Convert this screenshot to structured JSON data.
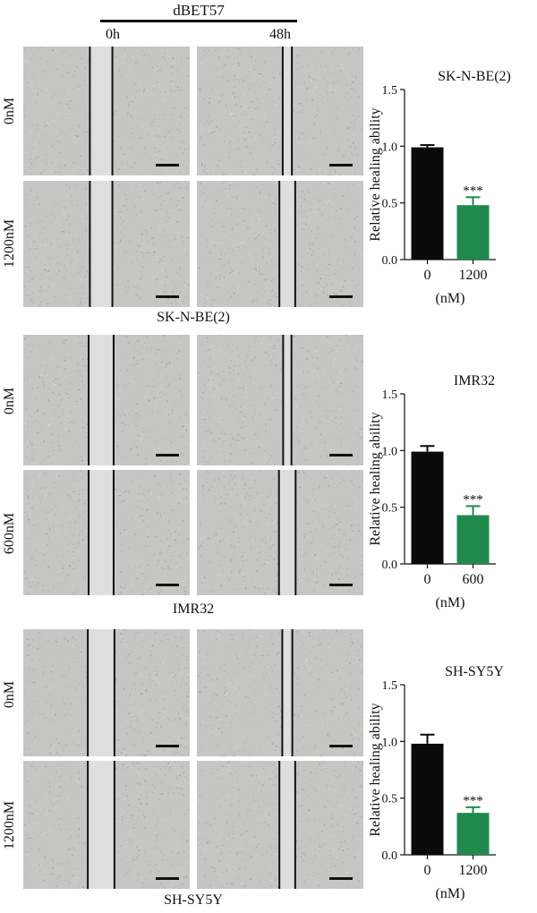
{
  "header": {
    "treatment": "dBET57",
    "time_0": "0h",
    "time_48": "48h"
  },
  "rows": [
    {
      "dose_top": "0nM",
      "dose_bottom": "1200nM",
      "cell_line_label": "SK-N-BE(2)",
      "wound_gap_fraction": {
        "top_0h": 0.135,
        "top_48h": 0.055,
        "bottom_0h": 0.135,
        "bottom_48h": 0.095
      }
    },
    {
      "dose_top": "0nM",
      "dose_bottom": "600nM",
      "cell_line_label": "IMR32",
      "wound_gap_fraction": {
        "top_0h": 0.15,
        "top_48h": 0.05,
        "bottom_0h": 0.15,
        "bottom_48h": 0.1
      }
    },
    {
      "dose_top": "0nM",
      "dose_bottom": "1200nM",
      "cell_line_label": "SH-SY5Y",
      "wound_gap_fraction": {
        "top_0h": 0.16,
        "top_48h": 0.06,
        "bottom_0h": 0.16,
        "bottom_48h": 0.095
      }
    }
  ],
  "chart_data": [
    {
      "type": "bar",
      "title": "SK-N-BE(2)",
      "ylabel": "Relative healing ability",
      "xlabel": "(nM)",
      "categories": [
        "0",
        "1200"
      ],
      "values": [
        0.99,
        0.48
      ],
      "error": [
        0.02,
        0.07
      ],
      "significance": [
        "",
        "***"
      ],
      "colors": [
        "#0a0a0a",
        "#1f8a4c"
      ],
      "ylim": [
        0,
        1.5
      ],
      "yticks": [
        0.0,
        0.5,
        1.0,
        1.5
      ],
      "ytick_labels": [
        "0.0",
        "0.5",
        "1.0",
        "1.5"
      ],
      "grid": false
    },
    {
      "type": "bar",
      "title": "IMR32",
      "ylabel": "Relative healing ability",
      "xlabel": "(nM)",
      "categories": [
        "0",
        "600"
      ],
      "values": [
        0.99,
        0.43
      ],
      "error": [
        0.05,
        0.08
      ],
      "significance": [
        "",
        "***"
      ],
      "colors": [
        "#0a0a0a",
        "#1f8a4c"
      ],
      "ylim": [
        0,
        1.5
      ],
      "yticks": [
        0.0,
        0.5,
        1.0,
        1.5
      ],
      "ytick_labels": [
        "0.0",
        "0.5",
        "1.0",
        "1.5"
      ],
      "grid": false
    },
    {
      "type": "bar",
      "title": "SH-SY5Y",
      "ylabel": "Relative healing ability",
      "xlabel": "(nM)",
      "categories": [
        "0",
        "1200"
      ],
      "values": [
        0.98,
        0.37
      ],
      "error": [
        0.08,
        0.05
      ],
      "significance": [
        "",
        "***"
      ],
      "colors": [
        "#0a0a0a",
        "#1f8a4c"
      ],
      "ylim": [
        0,
        1.5
      ],
      "yticks": [
        0.0,
        0.5,
        1.0,
        1.5
      ],
      "ytick_labels": [
        "0.0",
        "0.5",
        "1.0",
        "1.5"
      ],
      "grid": false
    }
  ]
}
